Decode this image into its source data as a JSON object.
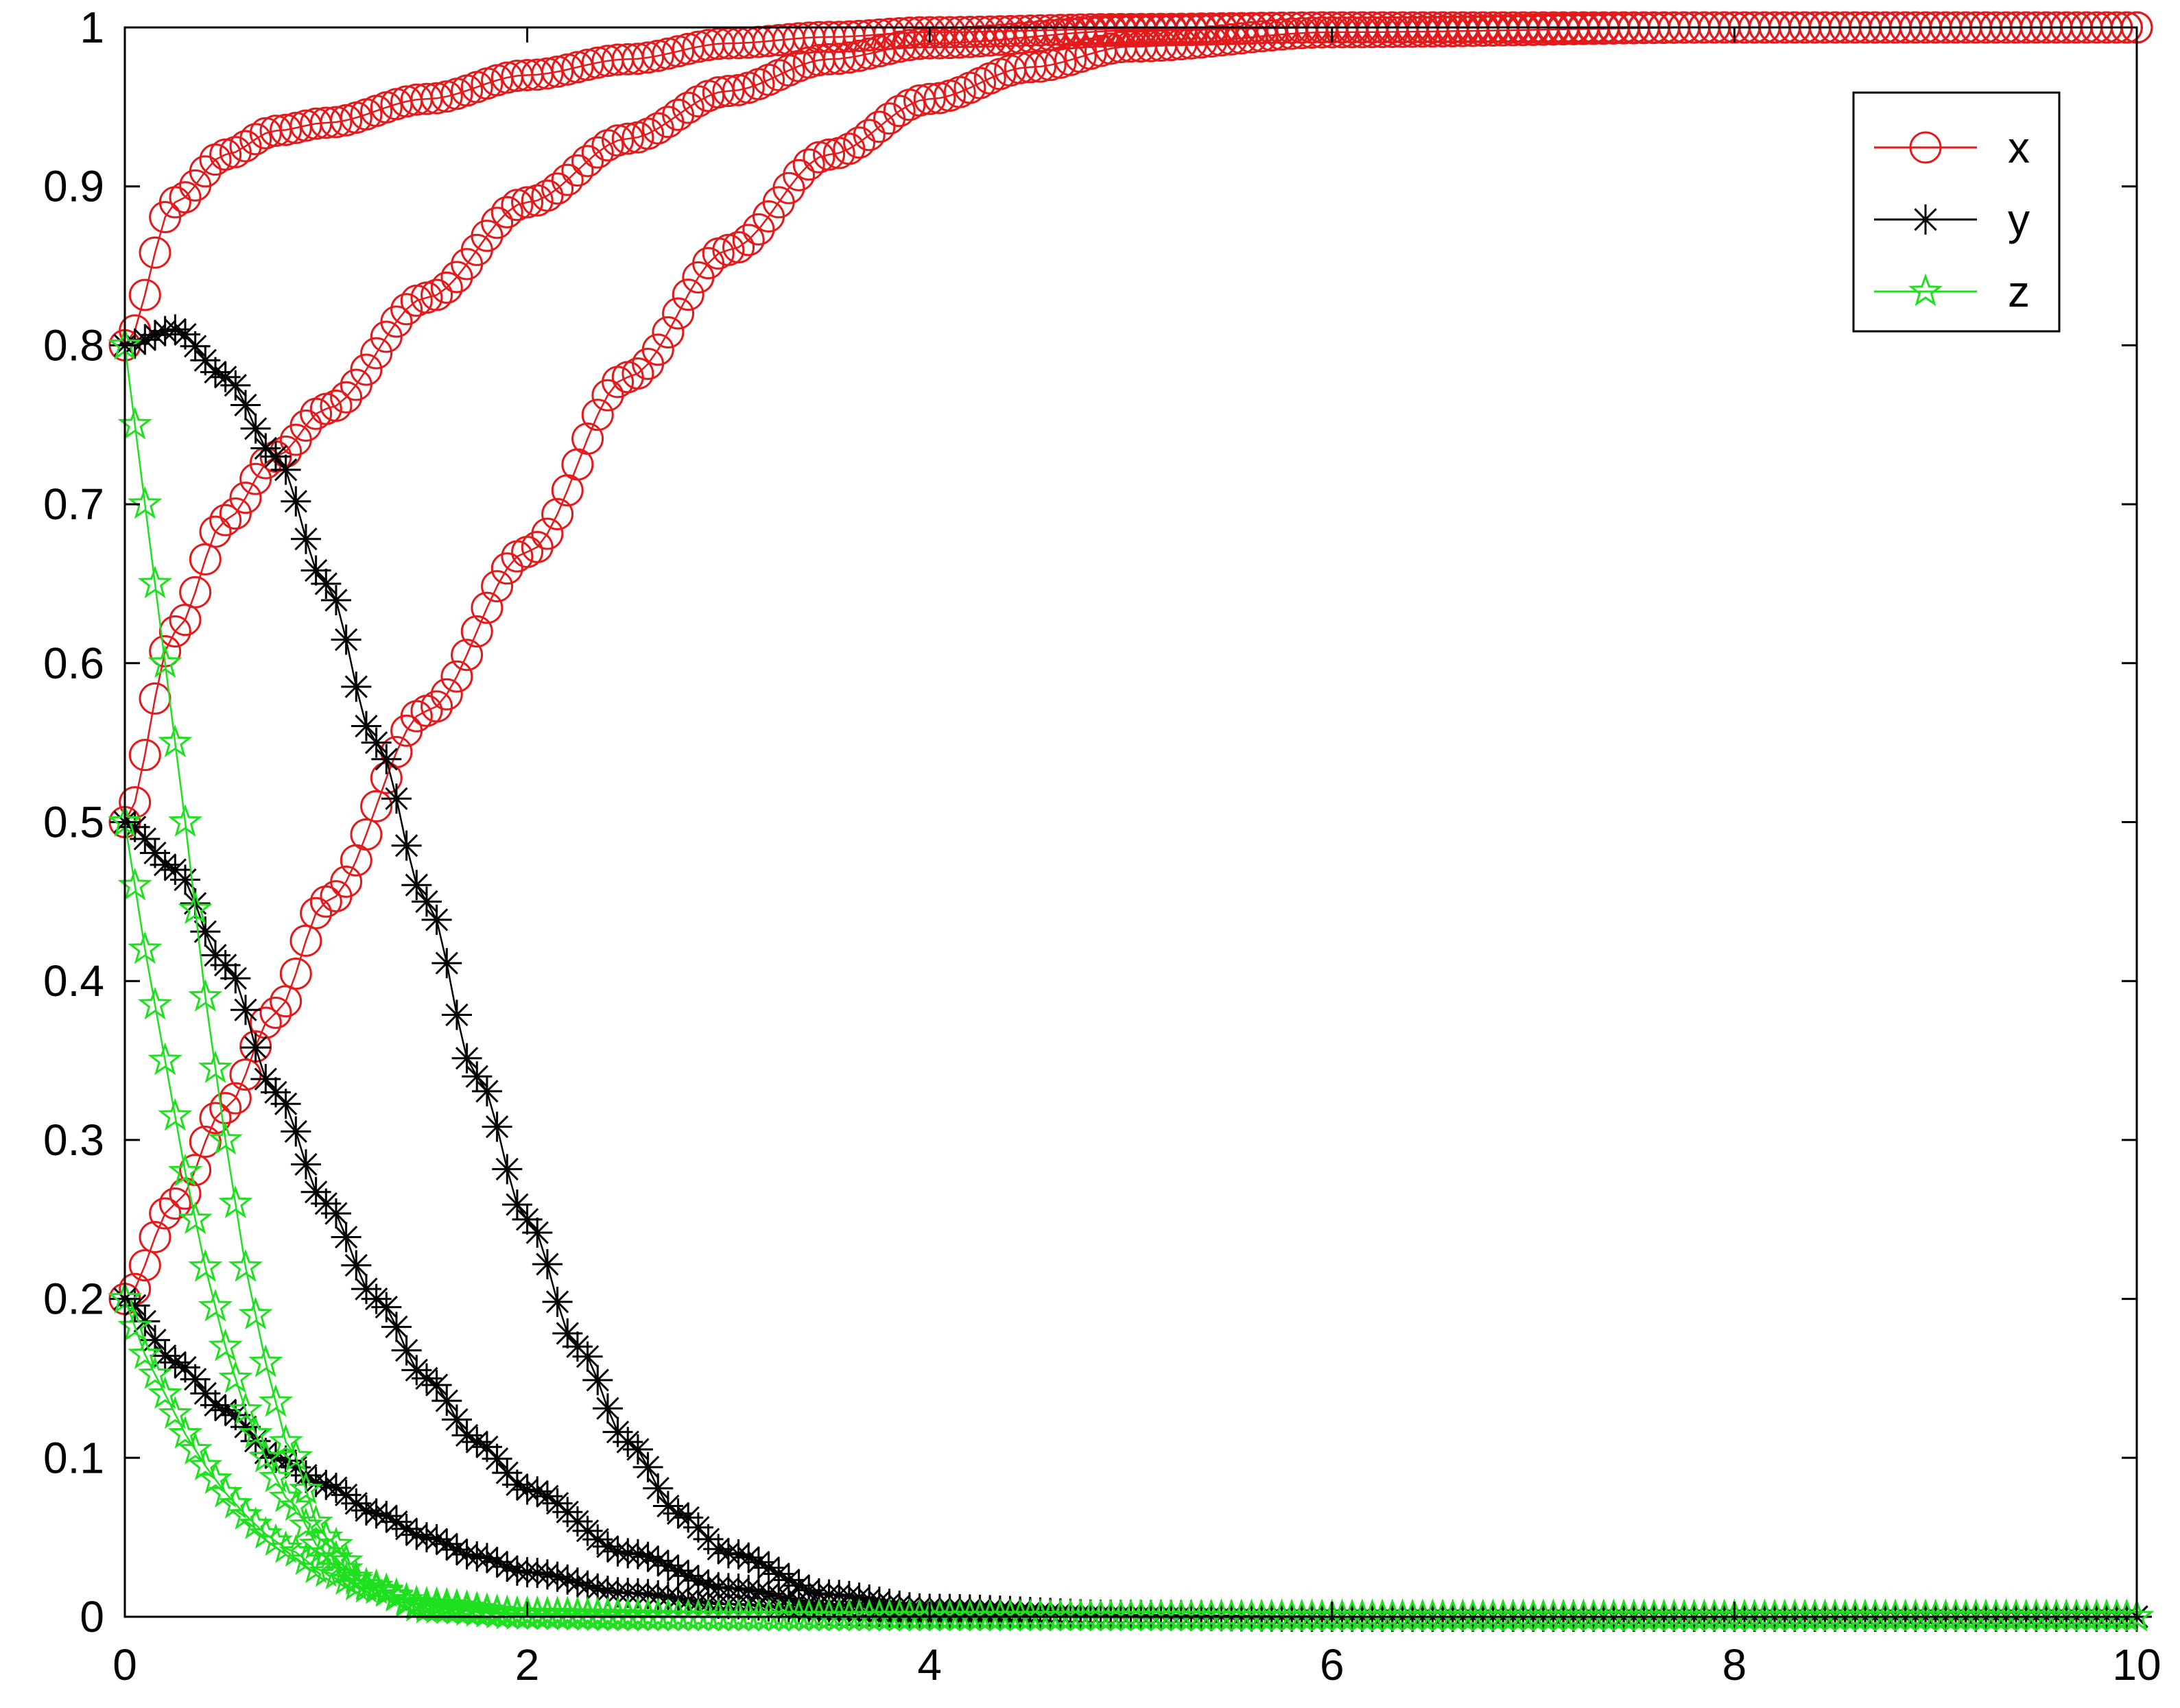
{
  "chart_data": {
    "type": "line",
    "title": "",
    "xlabel": "",
    "ylabel": "",
    "xlim": [
      0,
      10
    ],
    "ylim": [
      0,
      1
    ],
    "xticks": [
      "0",
      "2",
      "4",
      "6",
      "8",
      "10"
    ],
    "yticks": [
      "0",
      "0.1",
      "0.2",
      "0.3",
      "0.4",
      "0.5",
      "0.6",
      "0.7",
      "0.8",
      "0.9",
      "1"
    ],
    "grid": false,
    "legend": {
      "position": "top-right",
      "entries": [
        {
          "label": "x",
          "color": "#e31a1c",
          "marker": "circle"
        },
        {
          "label": "y",
          "color": "#000000",
          "marker": "asterisk"
        },
        {
          "label": "z",
          "color": "#1fe01f",
          "marker": "pentagram"
        }
      ]
    },
    "series": [
      {
        "name": "x",
        "color": "#e31a1c",
        "marker": "circle",
        "x": [
          0,
          0.25,
          0.5,
          0.75,
          1,
          1.5,
          2,
          2.5,
          3,
          3.5,
          4,
          5,
          6,
          8,
          10
        ],
        "values": [
          0.8,
          0.89,
          0.92,
          0.935,
          0.94,
          0.955,
          0.97,
          0.98,
          0.99,
          0.994,
          0.997,
          0.999,
          1,
          1,
          1
        ]
      },
      {
        "name": "x",
        "color": "#e31a1c",
        "marker": "circle",
        "x": [
          0,
          0.25,
          0.5,
          0.75,
          1,
          1.5,
          2,
          2.5,
          3,
          3.5,
          4,
          5,
          6,
          8,
          10
        ],
        "values": [
          0.5,
          0.62,
          0.69,
          0.73,
          0.76,
          0.83,
          0.89,
          0.93,
          0.96,
          0.98,
          0.99,
          0.998,
          1,
          1,
          1
        ]
      },
      {
        "name": "x",
        "color": "#e31a1c",
        "marker": "circle",
        "x": [
          0,
          0.25,
          0.5,
          0.75,
          1,
          1.5,
          2,
          2.5,
          3,
          3.5,
          4,
          4.5,
          5,
          6,
          8,
          10
        ],
        "values": [
          0.2,
          0.26,
          0.32,
          0.38,
          0.45,
          0.57,
          0.67,
          0.78,
          0.86,
          0.92,
          0.955,
          0.975,
          0.988,
          0.997,
          1,
          1
        ]
      },
      {
        "name": "y",
        "color": "#000000",
        "marker": "asterisk",
        "x": [
          0,
          0.25,
          0.5,
          0.75,
          1,
          1.25,
          1.5,
          1.75,
          2,
          2.25,
          2.5,
          2.75,
          3,
          3.5,
          4,
          5,
          6,
          8,
          10
        ],
        "values": [
          0.8,
          0.81,
          0.78,
          0.73,
          0.65,
          0.55,
          0.45,
          0.34,
          0.25,
          0.17,
          0.11,
          0.065,
          0.04,
          0.014,
          0.005,
          0.001,
          0,
          0,
          0
        ]
      },
      {
        "name": "y",
        "color": "#000000",
        "marker": "asterisk",
        "x": [
          0,
          0.25,
          0.5,
          0.75,
          1,
          1.25,
          1.5,
          1.75,
          2,
          2.5,
          3,
          3.5,
          4,
          5,
          6,
          8,
          10
        ],
        "values": [
          0.5,
          0.47,
          0.41,
          0.33,
          0.26,
          0.2,
          0.15,
          0.11,
          0.08,
          0.04,
          0.018,
          0.008,
          0.003,
          0.001,
          0,
          0,
          0
        ]
      },
      {
        "name": "y",
        "color": "#000000",
        "marker": "asterisk",
        "x": [
          0,
          0.25,
          0.5,
          0.75,
          1,
          1.25,
          1.5,
          1.75,
          2,
          2.5,
          3,
          3.5,
          4,
          6,
          8,
          10
        ],
        "values": [
          0.2,
          0.16,
          0.13,
          0.1,
          0.083,
          0.065,
          0.05,
          0.038,
          0.028,
          0.015,
          0.008,
          0.004,
          0.002,
          0,
          0,
          0
        ]
      },
      {
        "name": "z",
        "color": "#1fe01f",
        "marker": "pentagram",
        "x": [
          0,
          0.1,
          0.2,
          0.3,
          0.4,
          0.5,
          0.6,
          0.7,
          0.8,
          1,
          1.2,
          1.5,
          2,
          2.5,
          3,
          4,
          6,
          8,
          10
        ],
        "values": [
          0.8,
          0.7,
          0.6,
          0.5,
          0.39,
          0.3,
          0.22,
          0.16,
          0.11,
          0.05,
          0.02,
          0.005,
          0.001,
          0,
          0,
          0,
          0,
          0,
          0
        ]
      },
      {
        "name": "z",
        "color": "#1fe01f",
        "marker": "pentagram",
        "x": [
          0,
          0.1,
          0.2,
          0.3,
          0.4,
          0.5,
          0.6,
          0.7,
          0.8,
          1,
          1.2,
          1.5,
          2,
          3,
          4,
          6,
          8,
          10
        ],
        "values": [
          0.5,
          0.42,
          0.35,
          0.28,
          0.22,
          0.17,
          0.13,
          0.1,
          0.075,
          0.04,
          0.02,
          0.007,
          0.001,
          0,
          0,
          0,
          0,
          0
        ]
      },
      {
        "name": "z",
        "color": "#1fe01f",
        "marker": "pentagram",
        "x": [
          0,
          0.1,
          0.2,
          0.3,
          0.4,
          0.5,
          0.6,
          0.7,
          0.8,
          1,
          1.2,
          1.5,
          2,
          3,
          4,
          6,
          8,
          10
        ],
        "values": [
          0.2,
          0.165,
          0.14,
          0.115,
          0.095,
          0.078,
          0.064,
          0.052,
          0.043,
          0.028,
          0.018,
          0.008,
          0.002,
          0,
          0,
          0,
          0,
          0
        ]
      }
    ]
  }
}
